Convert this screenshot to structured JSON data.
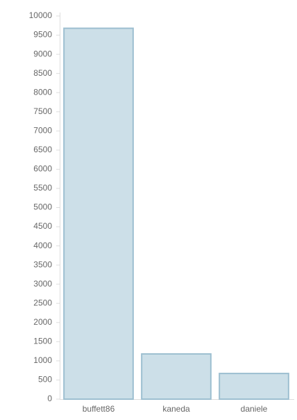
{
  "chart_data": {
    "type": "bar",
    "categories": [
      "buffett86",
      "kaneda",
      "daniele"
    ],
    "values": [
      9680,
      1180,
      670
    ],
    "color": "#ccdfe8",
    "stroke": "#9dbfd0",
    "ylim": [
      0,
      10000
    ],
    "yticks": [
      0,
      500,
      1000,
      1500,
      2000,
      2500,
      3000,
      3500,
      4000,
      4500,
      5000,
      5500,
      6000,
      6500,
      7000,
      7500,
      8000,
      8500,
      9000,
      9500,
      10000
    ],
    "grid": false
  }
}
